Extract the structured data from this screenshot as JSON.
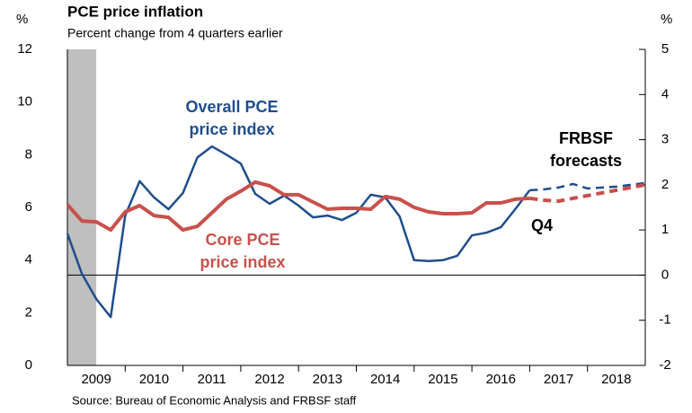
{
  "chart_data": {
    "type": "line",
    "title": "PCE price inflation",
    "subtitle": "Percent change from 4 quarters earlier",
    "source": "Source: Bureau of Economic Analysis and FRBSF staff",
    "ylabel": "%",
    "y2label": "%",
    "ylim": [
      0,
      12
    ],
    "yticks": [
      0,
      2,
      4,
      6,
      8,
      10,
      12
    ],
    "y2lim": [
      -2,
      5
    ],
    "y2ticks": [
      -2,
      -1,
      0,
      1,
      2,
      3,
      4,
      5
    ],
    "xlim": [
      2009,
      2019
    ],
    "xticks": [
      {
        "value": 2009.5,
        "label": "2009"
      },
      {
        "value": 2010.5,
        "label": "2010"
      },
      {
        "value": 2011.5,
        "label": "2011"
      },
      {
        "value": 2012.5,
        "label": "2012"
      },
      {
        "value": 2013.5,
        "label": "2013"
      },
      {
        "value": 2014.5,
        "label": "2014"
      },
      {
        "value": 2015.5,
        "label": "2015"
      },
      {
        "value": 2016.5,
        "label": "2016"
      },
      {
        "value": 2017.5,
        "label": "2017"
      },
      {
        "value": 2018.5,
        "label": "2018"
      }
    ],
    "recession": [
      2009,
      2009.5
    ],
    "x": [
      2009,
      2009.25,
      2009.5,
      2009.75,
      2010,
      2010.25,
      2010.5,
      2010.75,
      2011,
      2011.25,
      2011.5,
      2011.75,
      2012,
      2012.25,
      2012.5,
      2012.75,
      2013,
      2013.25,
      2013.5,
      2013.75,
      2014,
      2014.25,
      2014.5,
      2014.75,
      2015,
      2015.25,
      2015.5,
      2015.75,
      2016,
      2016.25,
      2016.5,
      2016.75,
      2017,
      2017.25,
      2017.5,
      2017.75,
      2018,
      2018.25,
      2018.5,
      2018.75,
      2019
    ],
    "series": [
      {
        "color": "#1f4e8c",
        "axis": "y2",
        "dashed": false,
        "values": [
          0.92,
          0.03,
          -0.53,
          -0.93,
          1.32,
          2.08,
          1.72,
          1.46,
          1.82,
          2.61,
          2.85,
          2.67,
          2.47,
          1.8,
          1.58,
          1.76,
          1.54,
          1.28,
          1.32,
          1.22,
          1.38,
          1.78,
          1.72,
          1.3,
          0.33,
          0.31,
          0.33,
          0.43,
          0.88,
          0.94,
          1.06,
          1.46,
          1.88,
          null,
          null,
          null,
          null,
          null,
          null,
          null,
          null
        ]
      },
      {
        "color": "#1f4e8c",
        "axis": "y2",
        "dashed": true,
        "values": [
          null,
          null,
          null,
          null,
          null,
          null,
          null,
          null,
          null,
          null,
          null,
          null,
          null,
          null,
          null,
          null,
          null,
          null,
          null,
          null,
          null,
          null,
          null,
          null,
          null,
          null,
          null,
          null,
          null,
          null,
          null,
          null,
          1.88,
          1.9,
          1.94,
          2.02,
          1.92,
          1.94,
          1.96,
          2.0,
          2.04
        ]
      },
      {
        "color": "#c9504b",
        "axis": "y2",
        "dashed": false,
        "values": [
          1.56,
          1.2,
          1.18,
          1.0,
          1.4,
          1.54,
          1.32,
          1.28,
          1.0,
          1.08,
          1.38,
          1.68,
          1.86,
          2.06,
          1.98,
          1.78,
          1.78,
          1.62,
          1.46,
          1.48,
          1.48,
          1.46,
          1.74,
          1.68,
          1.5,
          1.4,
          1.36,
          1.36,
          1.38,
          1.6,
          1.6,
          1.68,
          1.7,
          null,
          null,
          null,
          null,
          null,
          null,
          null,
          null
        ]
      },
      {
        "color": "#c9504b",
        "axis": "y2",
        "dashed": true,
        "values": [
          null,
          null,
          null,
          null,
          null,
          null,
          null,
          null,
          null,
          null,
          null,
          null,
          null,
          null,
          null,
          null,
          null,
          null,
          null,
          null,
          null,
          null,
          null,
          null,
          null,
          null,
          null,
          null,
          null,
          null,
          null,
          null,
          1.7,
          1.66,
          1.64,
          1.7,
          1.76,
          1.82,
          1.88,
          1.94,
          2.0
        ]
      }
    ],
    "annotations": [
      {
        "lines": [
          "Overall PCE",
          "price index"
        ],
        "color": "#1f4e8c"
      },
      {
        "lines": [
          "Core PCE",
          "price index"
        ],
        "color": "#c9504b"
      },
      {
        "lines": [
          "FRBSF",
          "forecasts"
        ],
        "color": "#000000"
      },
      {
        "lines": [
          "Q4"
        ],
        "color": "#000000"
      }
    ]
  }
}
